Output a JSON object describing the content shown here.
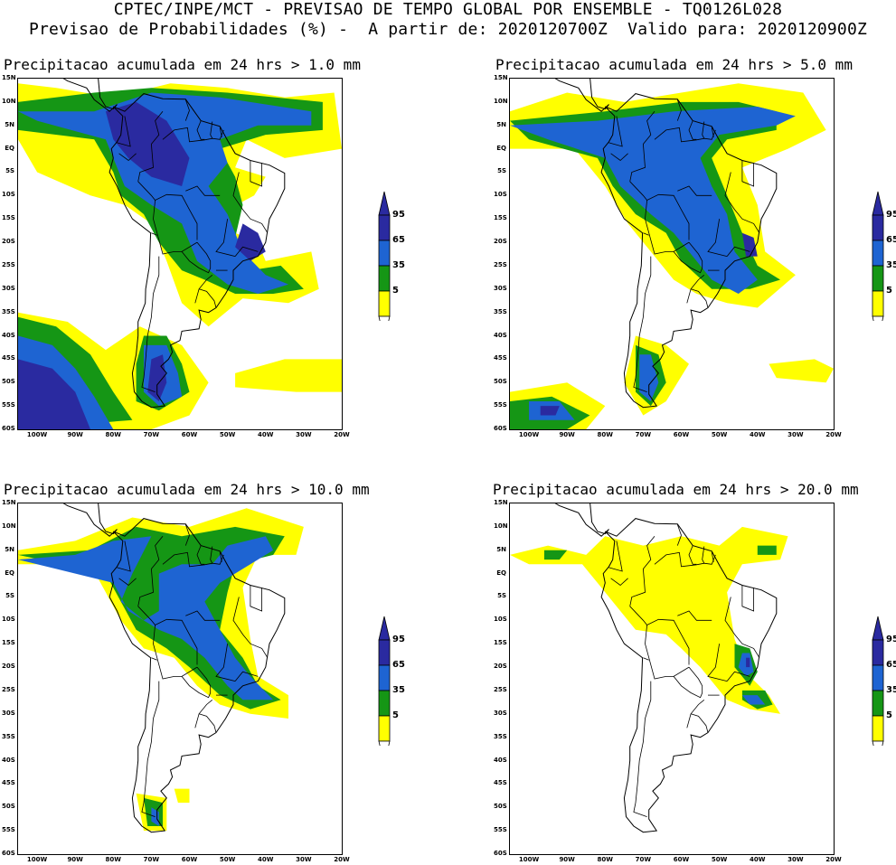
{
  "header": {
    "line1": "CPTEC/INPE/MCT - PREVISAO DE TEMPO GLOBAL POR ENSEMBLE - TQ0126L028",
    "line2": "Previsao de Probabilidades (%) -  A partir de: 2020120700Z  Valido para: 2020120900Z"
  },
  "lat_labels": [
    "15N",
    "10N",
    "5N",
    "EQ",
    "5S",
    "10S",
    "15S",
    "20S",
    "25S",
    "30S",
    "35S",
    "40S",
    "45S",
    "50S",
    "55S",
    "60S"
  ],
  "lon_labels": [
    "100W",
    "90W",
    "80W",
    "70W",
    "60W",
    "50W",
    "40W",
    "30W",
    "20W"
  ],
  "legend": {
    "levels": [
      "95",
      "65",
      "35",
      "5"
    ],
    "colors": {
      "c95": "#2a2aa0",
      "c65": "#1e64d2",
      "c35": "#159615",
      "c5": "#ffff00"
    }
  },
  "panels": [
    {
      "id": "p1",
      "title": "Precipitacao acumulada em 24 hrs > 1.0 mm"
    },
    {
      "id": "p2",
      "title": "Precipitacao acumulada em 24 hrs > 5.0 mm"
    },
    {
      "id": "p3",
      "title": "Precipitacao acumulada em 24 hrs > 10.0 mm"
    },
    {
      "id": "p4",
      "title": "Precipitacao acumulada em 24 hrs > 20.0 mm"
    }
  ]
}
